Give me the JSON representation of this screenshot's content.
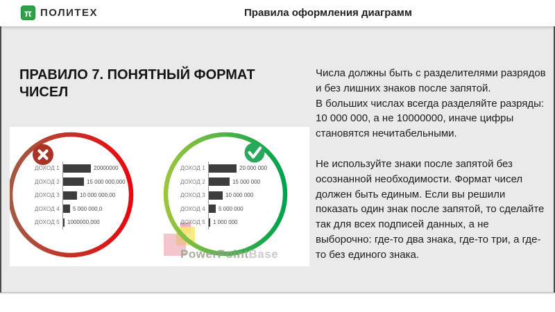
{
  "header": {
    "logo_icon_glyph": "π",
    "logo_text": "ПОЛИТЕХ",
    "title": "Правила оформления диаграмм"
  },
  "slide": {
    "heading": "ПРАВИЛО 7. ПОНЯТНЫЙ ФОРМАТ ЧИСЕЛ",
    "body_paragraphs": [
      "Числа должны быть с разделителями разрядов и без лишних знаков после запятой.",
      "В больших числах всегда разделяйте разряды: 10 000 000, а не 10000000, иначе цифры становятся нечитабельными.",
      "Не используйте знаки после запятой без осознанной необходимости. Формат чисел должен быть единым. Если вы решили показать один знак после запятой, то сделайте так для всех подписей данных, а не выборочно: где-то два знака, где-то три, а где-то без единого знака."
    ]
  },
  "chart_data": [
    {
      "type": "bar",
      "orientation": "horizontal",
      "status": "wrong-example",
      "status_icon": "x",
      "categories": [
        "ДОХОД 1",
        "ДОХОД 2",
        "ДОХОД 3",
        "ДОХОД 4",
        "ДОХОД 5"
      ],
      "values": [
        20000000,
        15000000,
        10000000,
        5000000,
        1000000
      ],
      "value_labels": [
        "20000000",
        "15 000 000,000",
        "10 000 000,00",
        "5 000 000,0",
        "1000000,000"
      ]
    },
    {
      "type": "bar",
      "orientation": "horizontal",
      "status": "right-example",
      "status_icon": "check",
      "categories": [
        "ДОХОД 1",
        "ДОХОД 2",
        "ДОХОД 3",
        "ДОХОД 4",
        "ДОХОД 5"
      ],
      "values": [
        20000000,
        15000000,
        10000000,
        5000000,
        1000000
      ],
      "value_labels": [
        "20 000 000",
        "15 000 000",
        "10 000 000",
        "5 000 000",
        "1 000 000"
      ]
    }
  ],
  "watermark": {
    "text_primary": "PowerPoint",
    "text_secondary": "Base"
  },
  "colors": {
    "bad_ring_start": "#a35a42",
    "bad_ring_end": "#e8080f",
    "bad_badge": "#a93324",
    "good_ring_start": "#9cc43d",
    "good_ring_end": "#00a24e",
    "good_badge": "#27a85c",
    "badge_glyph": "#ffffff",
    "bar": "#3d3d3d",
    "logo_green": "#2ea14a"
  }
}
